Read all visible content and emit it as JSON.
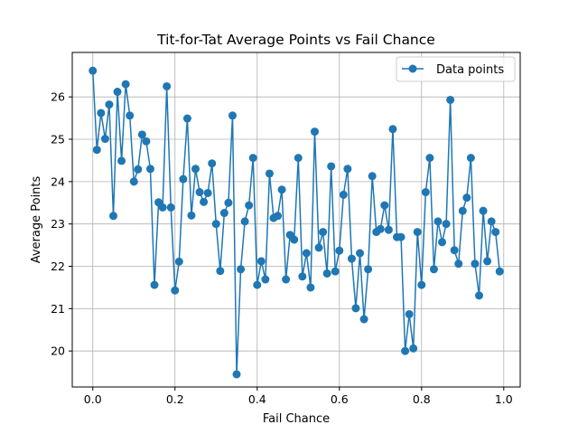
{
  "chart_data": {
    "type": "line",
    "title": "Tit-for-Tat Average Points vs Fail Chance",
    "xlabel": "Fail Chance",
    "ylabel": "Average Points",
    "xlim": [
      -0.05,
      1.04
    ],
    "ylim": [
      19.15,
      27.05
    ],
    "xticks": [
      0.0,
      0.2,
      0.4,
      0.6,
      0.8,
      1.0
    ],
    "xtick_labels": [
      "0.0",
      "0.2",
      "0.4",
      "0.6",
      "0.8",
      "1.0"
    ],
    "yticks": [
      20,
      21,
      22,
      23,
      24,
      25,
      26
    ],
    "ytick_labels": [
      "20",
      "21",
      "22",
      "23",
      "24",
      "25",
      "26"
    ],
    "grid": true,
    "legend_position": "top-right",
    "series": [
      {
        "name": "Data points",
        "color": "#1f77b4",
        "marker": "circle",
        "x": [
          0.0,
          0.01,
          0.02,
          0.03,
          0.04,
          0.05,
          0.06,
          0.07,
          0.08,
          0.09,
          0.1,
          0.11,
          0.12,
          0.13,
          0.14,
          0.15,
          0.16,
          0.17,
          0.18,
          0.19,
          0.2,
          0.21,
          0.22,
          0.23,
          0.24,
          0.25,
          0.26,
          0.27,
          0.28,
          0.29,
          0.3,
          0.31,
          0.32,
          0.33,
          0.34,
          0.35,
          0.36,
          0.37,
          0.38,
          0.39,
          0.4,
          0.41,
          0.42,
          0.43,
          0.44,
          0.45,
          0.46,
          0.47,
          0.48,
          0.49,
          0.5,
          0.51,
          0.52,
          0.53,
          0.54,
          0.55,
          0.56,
          0.57,
          0.58,
          0.59,
          0.6,
          0.61,
          0.62,
          0.63,
          0.64,
          0.65,
          0.66,
          0.67,
          0.68,
          0.69,
          0.7,
          0.71,
          0.72,
          0.73,
          0.74,
          0.75,
          0.76,
          0.77,
          0.78,
          0.79,
          0.8,
          0.81,
          0.82,
          0.83,
          0.84,
          0.85,
          0.86,
          0.87,
          0.88,
          0.89,
          0.9,
          0.91,
          0.92,
          0.93,
          0.94,
          0.95,
          0.96,
          0.97,
          0.98,
          0.99
        ],
        "y": [
          26.62,
          24.75,
          25.62,
          25.01,
          25.82,
          23.19,
          26.12,
          24.49,
          26.3,
          25.56,
          24.0,
          24.29,
          25.11,
          24.95,
          24.3,
          21.56,
          23.51,
          23.39,
          26.25,
          23.39,
          21.43,
          22.11,
          24.06,
          25.49,
          23.2,
          24.3,
          23.75,
          23.52,
          23.73,
          24.43,
          23.0,
          21.89,
          23.26,
          23.5,
          25.56,
          19.45,
          21.93,
          23.06,
          23.44,
          24.56,
          21.56,
          22.12,
          21.69,
          24.19,
          23.14,
          23.19,
          23.81,
          21.69,
          22.74,
          22.63,
          24.56,
          21.76,
          22.31,
          21.5,
          25.18,
          22.44,
          22.81,
          21.83,
          24.36,
          21.88,
          22.37,
          23.69,
          24.3,
          22.18,
          21.01,
          22.31,
          20.75,
          21.93,
          24.13,
          22.81,
          22.88,
          23.44,
          22.86,
          25.24,
          22.69,
          22.69,
          20.0,
          20.87,
          20.06,
          22.81,
          21.56,
          23.75,
          24.56,
          21.93,
          23.06,
          22.57,
          23.0,
          25.93,
          22.38,
          22.06,
          23.31,
          23.62,
          24.56,
          22.06,
          21.31,
          23.31,
          22.12,
          23.06,
          22.81,
          21.88
        ]
      }
    ]
  }
}
